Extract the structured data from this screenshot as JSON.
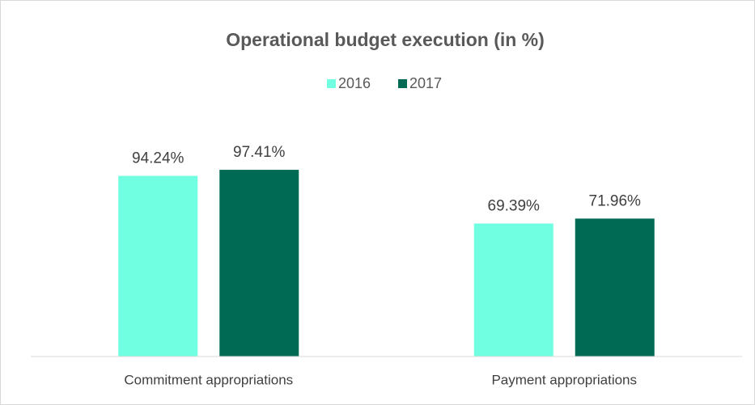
{
  "chart_data": {
    "type": "bar",
    "title": "Operational budget execution (in %)",
    "categories": [
      "Commitment appropriations",
      "Payment appropriations"
    ],
    "series": [
      {
        "name": "2016",
        "color": "#70ffe0",
        "values": [
          94.24,
          69.39
        ],
        "value_labels": [
          "94.24%",
          "69.39%"
        ]
      },
      {
        "name": "2017",
        "color": "#006a55",
        "values": [
          97.41,
          71.96
        ],
        "value_labels": [
          "97.41%",
          "71.96%"
        ]
      }
    ],
    "ylim": [
      0,
      120
    ],
    "legend": "top"
  }
}
